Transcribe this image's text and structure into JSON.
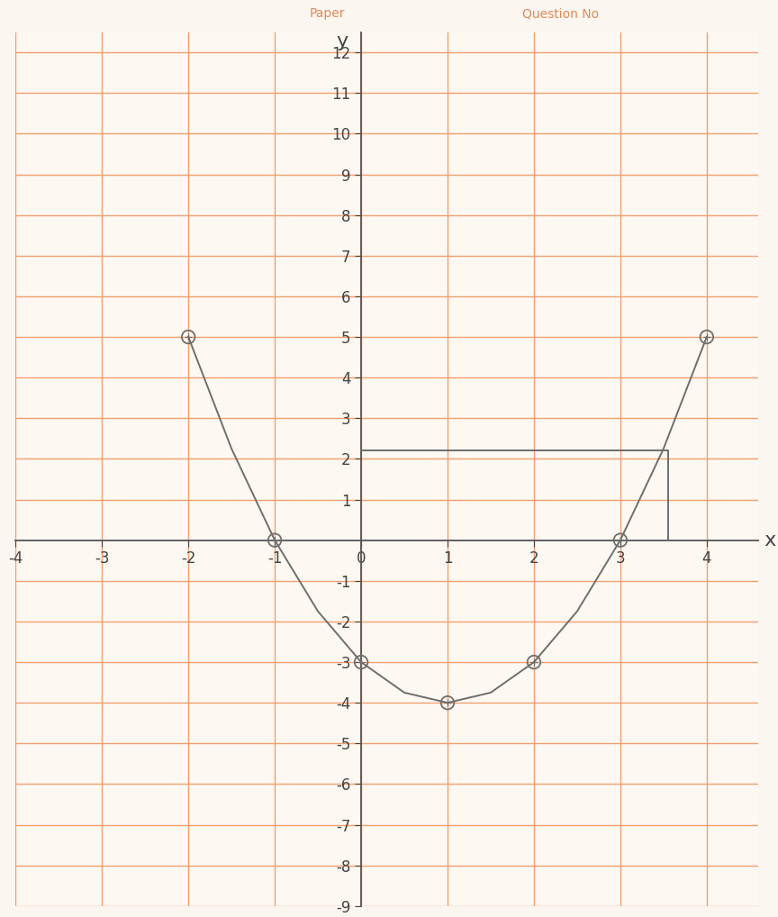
{
  "chart_data": {
    "type": "line",
    "x_label": "x",
    "y_label": "y",
    "annotations": [
      "Paper",
      "Question No"
    ],
    "series": [
      {
        "type": "line",
        "color": "#6e6e6e",
        "line_style": "solid",
        "marker": "none",
        "x": [
          -2,
          -1.5,
          -1,
          -0.5,
          0,
          0.5,
          1,
          1.5,
          2,
          2.5,
          3,
          3.5,
          4
        ],
        "values": [
          5,
          2.25,
          0,
          -1.75,
          -3,
          -3.75,
          -4,
          -3.75,
          -3,
          -1.75,
          0,
          2.25,
          5
        ]
      },
      {
        "type": "scatter",
        "color": "#6e6e6e",
        "marker": "circle",
        "x": [
          -2,
          -1,
          0,
          1,
          2,
          3,
          4
        ],
        "values": [
          5,
          0,
          -3,
          -4,
          -3,
          0,
          5
        ]
      },
      {
        "type": "line",
        "color": "#6e6e6e",
        "line_style": "solid",
        "marker": "none",
        "x": [
          0,
          3.55,
          3.55
        ],
        "values": [
          2.2,
          2.2,
          0
        ]
      }
    ],
    "xlim": [
      -4,
      4.6
    ],
    "ylim": [
      -9,
      12.5
    ],
    "xticks": [
      -4,
      -3,
      -2,
      -1,
      0,
      1,
      2,
      3,
      4
    ],
    "yticks": [
      -9,
      -8,
      -7,
      -6,
      -5,
      -4,
      -3,
      -2,
      -1,
      1,
      2,
      3,
      4,
      5,
      6,
      7,
      8,
      9,
      10,
      11,
      12
    ],
    "grid": true
  }
}
